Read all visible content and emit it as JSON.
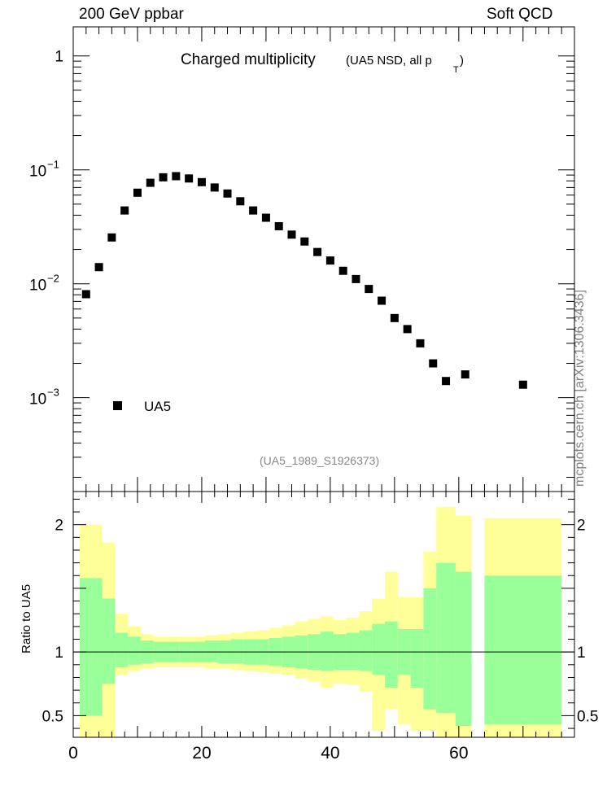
{
  "header": {
    "left": "200 GeV ppbar",
    "right": "Soft QCD"
  },
  "side_label": "mcplots.cern.ch [arXiv:1306.3436]",
  "colors": {
    "data_marker": "#000000",
    "band_outer": "#ffff99",
    "band_inner": "#99ff99",
    "frame": "#000000",
    "ref_label": "#888888"
  },
  "chart_data": [
    {
      "type": "scatter",
      "title": "Charged multiplicity",
      "title_suffix": "(UA5 NSD, all p",
      "title_sub": "T",
      "title_close": ")",
      "ref_label": "(UA5_1989_S1926373)",
      "yscale": "log",
      "ylim": [
        0.00015,
        1.8
      ],
      "xlim": [
        0,
        78
      ],
      "yticks": [
        {
          "value": 1,
          "base": "1",
          "exp": ""
        },
        {
          "value": 0.1,
          "base": "10",
          "exp": "−1"
        },
        {
          "value": 0.01,
          "base": "10",
          "exp": "−2"
        },
        {
          "value": 0.001,
          "base": "10",
          "exp": "−3"
        }
      ],
      "legend": {
        "position": "bottom-left",
        "entries": [
          "UA5"
        ]
      },
      "series": [
        {
          "name": "UA5",
          "points": [
            {
              "x": 2,
              "y": 0.0081
            },
            {
              "x": 4,
              "y": 0.014
            },
            {
              "x": 6,
              "y": 0.0255
            },
            {
              "x": 8,
              "y": 0.044
            },
            {
              "x": 10,
              "y": 0.063
            },
            {
              "x": 12,
              "y": 0.077
            },
            {
              "x": 14,
              "y": 0.086
            },
            {
              "x": 16,
              "y": 0.088
            },
            {
              "x": 18,
              "y": 0.084
            },
            {
              "x": 20,
              "y": 0.078
            },
            {
              "x": 22,
              "y": 0.07
            },
            {
              "x": 24,
              "y": 0.062
            },
            {
              "x": 26,
              "y": 0.053
            },
            {
              "x": 28,
              "y": 0.044
            },
            {
              "x": 30,
              "y": 0.038
            },
            {
              "x": 32,
              "y": 0.032
            },
            {
              "x": 34,
              "y": 0.027
            },
            {
              "x": 36,
              "y": 0.0235
            },
            {
              "x": 38,
              "y": 0.019
            },
            {
              "x": 40,
              "y": 0.016
            },
            {
              "x": 42,
              "y": 0.013
            },
            {
              "x": 44,
              "y": 0.011
            },
            {
              "x": 46,
              "y": 0.009
            },
            {
              "x": 48,
              "y": 0.0071
            },
            {
              "x": 50,
              "y": 0.005
            },
            {
              "x": 52,
              "y": 0.004
            },
            {
              "x": 54,
              "y": 0.003
            },
            {
              "x": 56,
              "y": 0.002
            },
            {
              "x": 58,
              "y": 0.0014
            },
            {
              "x": 61,
              "y": 0.0016
            },
            {
              "x": 70,
              "y": 0.0013
            }
          ]
        }
      ]
    },
    {
      "type": "area",
      "ylabel": "Ratio to UA5",
      "xlim": [
        0,
        78
      ],
      "ylim": [
        0.33,
        2.26
      ],
      "xticks": [
        0,
        20,
        40,
        60
      ],
      "yticks": [
        {
          "value": 0.5,
          "label": "0.5"
        },
        {
          "value": 1,
          "label": "1"
        },
        {
          "value": 2,
          "label": "2"
        }
      ],
      "reference_line": 1,
      "bands": [
        {
          "x0": 1,
          "x1": 3,
          "inner": [
            0.5,
            1.58
          ],
          "outer": [
            0.3,
            2.0
          ]
        },
        {
          "x0": 3,
          "x1": 4.5,
          "inner": [
            0.5,
            1.58
          ],
          "outer": [
            0.3,
            2.0
          ]
        },
        {
          "x0": 4.5,
          "x1": 6.5,
          "inner": [
            0.75,
            1.42
          ],
          "outer": [
            0.3,
            1.86
          ]
        },
        {
          "x0": 6.5,
          "x1": 8.5,
          "inner": [
            0.88,
            1.15
          ],
          "outer": [
            0.82,
            1.3
          ]
        },
        {
          "x0": 8.5,
          "x1": 10.5,
          "inner": [
            0.9,
            1.12
          ],
          "outer": [
            0.85,
            1.2
          ]
        },
        {
          "x0": 10.5,
          "x1": 12.5,
          "inner": [
            0.91,
            1.09
          ],
          "outer": [
            0.87,
            1.14
          ]
        },
        {
          "x0": 12.5,
          "x1": 14.5,
          "inner": [
            0.92,
            1.08
          ],
          "outer": [
            0.88,
            1.12
          ]
        },
        {
          "x0": 14.5,
          "x1": 16.5,
          "inner": [
            0.92,
            1.08
          ],
          "outer": [
            0.88,
            1.12
          ]
        },
        {
          "x0": 16.5,
          "x1": 18.5,
          "inner": [
            0.92,
            1.08
          ],
          "outer": [
            0.88,
            1.12
          ]
        },
        {
          "x0": 18.5,
          "x1": 20.5,
          "inner": [
            0.92,
            1.08
          ],
          "outer": [
            0.88,
            1.12
          ]
        },
        {
          "x0": 20.5,
          "x1": 22.5,
          "inner": [
            0.92,
            1.09
          ],
          "outer": [
            0.87,
            1.13
          ]
        },
        {
          "x0": 22.5,
          "x1": 24.5,
          "inner": [
            0.91,
            1.09
          ],
          "outer": [
            0.87,
            1.14
          ]
        },
        {
          "x0": 24.5,
          "x1": 26.5,
          "inner": [
            0.91,
            1.1
          ],
          "outer": [
            0.86,
            1.15
          ]
        },
        {
          "x0": 26.5,
          "x1": 28.5,
          "inner": [
            0.9,
            1.1
          ],
          "outer": [
            0.85,
            1.16
          ]
        },
        {
          "x0": 28.5,
          "x1": 30.5,
          "inner": [
            0.9,
            1.1
          ],
          "outer": [
            0.84,
            1.17
          ]
        },
        {
          "x0": 30.5,
          "x1": 32.5,
          "inner": [
            0.89,
            1.11
          ],
          "outer": [
            0.83,
            1.19
          ]
        },
        {
          "x0": 32.5,
          "x1": 34.5,
          "inner": [
            0.88,
            1.12
          ],
          "outer": [
            0.82,
            1.21
          ]
        },
        {
          "x0": 34.5,
          "x1": 36.5,
          "inner": [
            0.87,
            1.13
          ],
          "outer": [
            0.79,
            1.24
          ]
        },
        {
          "x0": 36.5,
          "x1": 38.5,
          "inner": [
            0.86,
            1.14
          ],
          "outer": [
            0.77,
            1.26
          ]
        },
        {
          "x0": 38.5,
          "x1": 40.5,
          "inner": [
            0.85,
            1.16
          ],
          "outer": [
            0.72,
            1.28
          ]
        },
        {
          "x0": 40.5,
          "x1": 42.5,
          "inner": [
            0.86,
            1.14
          ],
          "outer": [
            0.75,
            1.25
          ]
        },
        {
          "x0": 42.5,
          "x1": 44.5,
          "inner": [
            0.86,
            1.15
          ],
          "outer": [
            0.74,
            1.27
          ]
        },
        {
          "x0": 44.5,
          "x1": 46.5,
          "inner": [
            0.85,
            1.17
          ],
          "outer": [
            0.69,
            1.32
          ]
        },
        {
          "x0": 46.5,
          "x1": 48.5,
          "inner": [
            0.82,
            1.22
          ],
          "outer": [
            0.38,
            1.42
          ]
        },
        {
          "x0": 48.5,
          "x1": 50.5,
          "inner": [
            0.72,
            1.24
          ],
          "outer": [
            0.55,
            1.63
          ]
        },
        {
          "x0": 50.5,
          "x1": 52.5,
          "inner": [
            0.82,
            1.18
          ],
          "outer": [
            0.43,
            1.43
          ]
        },
        {
          "x0": 52.5,
          "x1": 54.5,
          "inner": [
            0.72,
            1.18
          ],
          "outer": [
            0.38,
            1.43
          ]
        },
        {
          "x0": 54.5,
          "x1": 56.5,
          "inner": [
            0.55,
            1.5
          ],
          "outer": [
            0.38,
            1.79
          ]
        },
        {
          "x0": 56.5,
          "x1": 59.5,
          "inner": [
            0.52,
            1.7
          ],
          "outer": [
            0.3,
            2.14
          ]
        },
        {
          "x0": 59.5,
          "x1": 62,
          "inner": [
            0.42,
            1.63
          ],
          "outer": [
            0.3,
            2.07
          ]
        },
        {
          "x0": 64,
          "x1": 76,
          "inner": [
            0.43,
            1.6
          ],
          "outer": [
            0.3,
            2.05
          ]
        }
      ]
    }
  ]
}
